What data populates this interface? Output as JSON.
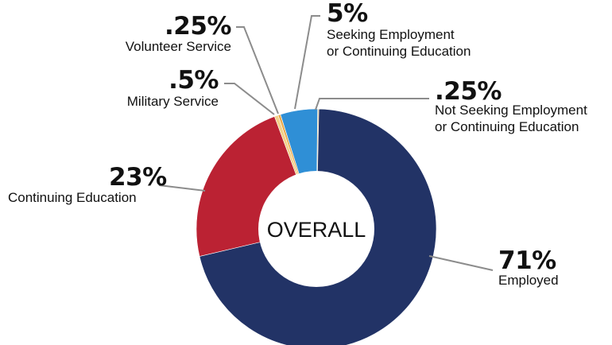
{
  "chart_data": {
    "type": "pie",
    "variant": "donut",
    "center_label": "OVERALL",
    "slices": [
      {
        "key": "not_seeking",
        "value": 0.25,
        "value_label": ".25%",
        "label_lines": [
          "Not Seeking Employment",
          "or Continuing Education"
        ],
        "color": "#e8c98a"
      },
      {
        "key": "employed",
        "value": 71,
        "value_label": "71%",
        "label_lines": [
          "Employed"
        ],
        "color": "#223366"
      },
      {
        "key": "continuing_education",
        "value": 23,
        "value_label": "23%",
        "label_lines": [
          "Continuing Education"
        ],
        "color": "#bb2233"
      },
      {
        "key": "military_service",
        "value": 0.5,
        "value_label": ".5%",
        "label_lines": [
          "Military Service"
        ],
        "color": "#f2d089"
      },
      {
        "key": "volunteer_service",
        "value": 0.25,
        "value_label": ".25%",
        "label_lines": [
          "Volunteer Service"
        ],
        "color": "#e9a94a"
      },
      {
        "key": "seeking",
        "value": 5,
        "value_label": "5%",
        "label_lines": [
          "Seeking Employment",
          "or Continuing Education"
        ],
        "color": "#2f8fd6"
      }
    ]
  }
}
